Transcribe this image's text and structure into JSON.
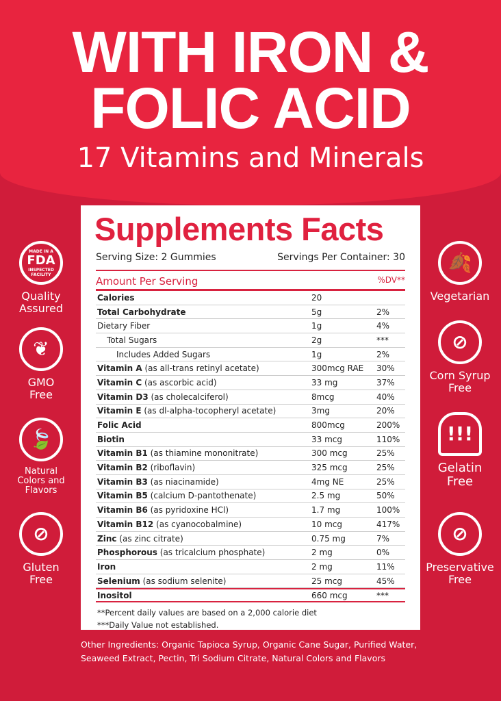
{
  "headline": {
    "line1": "WITH IRON &",
    "line2": "FOLIC ACID",
    "subtitle": "17 Vitamins and Minerals"
  },
  "facts": {
    "title": "Supplements Facts",
    "serving_size": "Serving Size: 2 Gummies",
    "servings_per_container": "Servings Per Container: 30",
    "amount_header": "Amount Per Serving",
    "dv_header": "%DV**",
    "rows": [
      {
        "name": "Calories",
        "desc": "",
        "amount": "20",
        "dv": ""
      },
      {
        "name": "Total Carbohydrate",
        "desc": "",
        "amount": "5g",
        "dv": "2%"
      },
      {
        "name": "",
        "desc": "Dietary Fiber",
        "amount": "1g",
        "dv": "4%"
      },
      {
        "name": "",
        "desc": "Total Sugars",
        "amount": "2g",
        "dv": "***"
      },
      {
        "name": "",
        "desc": "Includes Added Sugars",
        "amount": "1g",
        "dv": "2%"
      },
      {
        "name": "Vitamin A",
        "desc": " (as all-trans retinyl acetate)",
        "amount": "300mcg RAE",
        "dv": "30%"
      },
      {
        "name": "Vitamin C",
        "desc": " (as ascorbic acid)",
        "amount": "33 mg",
        "dv": "37%"
      },
      {
        "name": "Vitamin D3",
        "desc": " (as cholecalciferol)",
        "amount": "8mcg",
        "dv": "40%"
      },
      {
        "name": "Vitamin E",
        "desc": " (as dl-alpha-tocopheryl acetate)",
        "amount": "3mg",
        "dv": "20%"
      },
      {
        "name": "Folic Acid",
        "desc": "",
        "amount": "800mcg",
        "dv": "200%"
      },
      {
        "name": "Biotin",
        "desc": "",
        "amount": "33 mcg",
        "dv": "110%"
      },
      {
        "name": "Vitamin B1",
        "desc": " (as thiamine mononitrate)",
        "amount": "300 mcg",
        "dv": "25%"
      },
      {
        "name": "Vitamin B2",
        "desc": " (riboflavin)",
        "amount": "325 mcg",
        "dv": "25%"
      },
      {
        "name": "Vitamin B3",
        "desc": " (as niacinamide)",
        "amount": "4mg NE",
        "dv": "25%"
      },
      {
        "name": "Vitamin B5",
        "desc": " (calcium D-pantothenate)",
        "amount": "2.5 mg",
        "dv": "50%"
      },
      {
        "name": "Vitamin B6",
        "desc": " (as pyridoxine HCl)",
        "amount": "1.7 mg",
        "dv": "100%"
      },
      {
        "name": "Vitamin B12",
        "desc": " (as cyanocobalmine)",
        "amount": "10 mcg",
        "dv": "417%"
      },
      {
        "name": "Zinc",
        "desc": " (as zinc citrate)",
        "amount": "0.75 mg",
        "dv": "7%"
      },
      {
        "name": "Phosphorous",
        "desc": " (as tricalcium phosphate)",
        "amount": "2 mg",
        "dv": "0%"
      },
      {
        "name": "Iron",
        "desc": "",
        "amount": "2 mg",
        "dv": "11%"
      },
      {
        "name": "Selenium",
        "desc": " (as sodium selenite)",
        "amount": "25 mcg",
        "dv": "45%"
      },
      {
        "name": "Inositol",
        "desc": "",
        "amount": "660 mcg",
        "dv": "***"
      }
    ],
    "footnote1": "**Percent daily values are based on a 2,000 calorie diet",
    "footnote2": "***Daily Value not established."
  },
  "other_ingredients": "Other Ingredients: Organic Tapioca Syrup, Organic Cane Sugar, Purified Water, Seaweed Extract, Pectin, Tri Sodium Citrate, Natural Colors and Flavors",
  "badges_left": [
    {
      "icon": "fda-seal-icon",
      "seal_top": "MADE IN A",
      "seal_main": "FDA",
      "seal_bottom": "INSPECTED FACILITY",
      "label": "Quality Assured"
    },
    {
      "icon": "plant-icon",
      "label": "GMO Free"
    },
    {
      "icon": "leaf-icon",
      "label": "Natural Colors and Flavors"
    },
    {
      "icon": "no-wheat-icon",
      "label": "Gluten Free"
    }
  ],
  "badges_right": [
    {
      "icon": "leaf-icon",
      "label": "Vegetarian"
    },
    {
      "icon": "no-corn-icon",
      "label": "Corn Syrup Free"
    },
    {
      "icon": "gelatin-icon",
      "label": "Gelatin Free"
    },
    {
      "icon": "no-preservative-icon",
      "label": "Preservative Free"
    }
  ],
  "colors": {
    "header_red": "#e8243f",
    "body_red": "#d01c3a",
    "accent": "#e0213f"
  }
}
